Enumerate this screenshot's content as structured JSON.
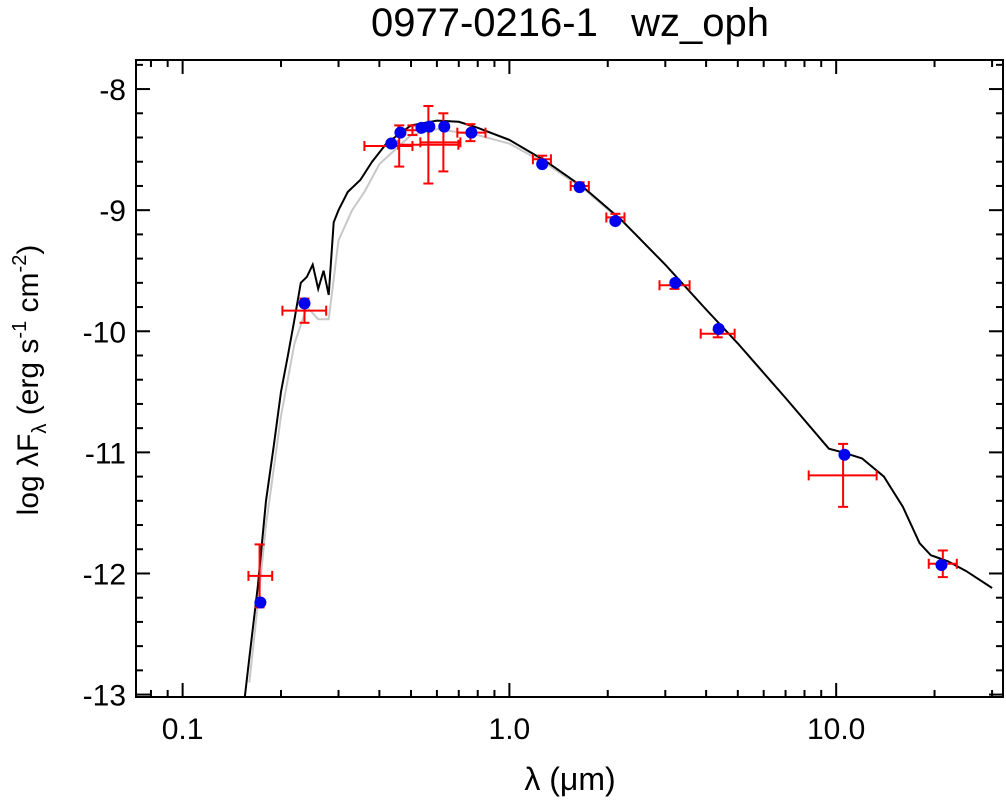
{
  "chart_data": {
    "type": "scatter",
    "title": "0977-0216-1   wz_oph",
    "xlabel": "λ (μm)",
    "ylabel": {
      "main": "log λF",
      "sub": "λ",
      "unit1": " (erg s",
      "exp1": "-1",
      "unit2": " cm",
      "exp2": "-2",
      "close": ")"
    },
    "xscale": "log",
    "xlim": [
      0.072,
      32.4
    ],
    "ylim": [
      -13.02,
      -7.76
    ],
    "xticks": [
      0.1,
      {
        "value": 1,
        "label": "1.0"
      },
      {
        "value": 10,
        "label": "10.0"
      }
    ],
    "xminorticks": [
      0.08,
      0.09,
      0.2,
      0.3,
      0.4,
      0.5,
      0.6,
      0.7,
      0.8,
      0.9,
      2,
      3,
      4,
      5,
      6,
      7,
      8,
      9,
      20,
      30
    ],
    "yticks": [
      -8,
      -9,
      -10,
      -11,
      -12,
      -13
    ],
    "yminorticks": [
      -7.8,
      -8.2,
      -8.4,
      -8.6,
      -8.8,
      -9.2,
      -9.4,
      -9.6,
      -9.8,
      -10.2,
      -10.4,
      -10.6,
      -10.8,
      -11.2,
      -11.4,
      -11.6,
      -11.8,
      -12.2,
      -12.4,
      -12.6,
      -12.8
    ],
    "series": [
      {
        "type": "line",
        "color": "#c8c8c8",
        "x": [
          0.16,
          0.17,
          0.18,
          0.2,
          0.22,
          0.24,
          0.26,
          0.28,
          0.3,
          0.33,
          0.36,
          0.4,
          0.5,
          0.6,
          0.8,
          1.0,
          1.3,
          1.7,
          2.2
        ],
        "values": [
          -12.9,
          -12.25,
          -11.6,
          -10.7,
          -10.1,
          -9.8,
          -9.9,
          -9.9,
          -9.25,
          -9.0,
          -8.85,
          -8.62,
          -8.38,
          -8.33,
          -8.38,
          -8.45,
          -8.62,
          -8.83,
          -9.09
        ]
      },
      {
        "type": "line",
        "color": "#000000",
        "x": [
          0.155,
          0.16,
          0.17,
          0.18,
          0.19,
          0.2,
          0.21,
          0.22,
          0.23,
          0.24,
          0.25,
          0.26,
          0.27,
          0.28,
          0.29,
          0.3,
          0.32,
          0.35,
          0.38,
          0.42,
          0.5,
          0.6,
          0.7,
          0.8,
          1.0,
          1.3,
          1.7,
          2.2,
          3.0,
          4.0,
          5.0,
          7.0,
          9.5,
          10.5,
          12,
          14,
          16,
          18,
          19.5,
          20,
          22,
          25,
          30
        ],
        "values": [
          -13.02,
          -12.7,
          -12.1,
          -11.4,
          -10.95,
          -10.5,
          -10.2,
          -9.9,
          -9.6,
          -9.55,
          -9.45,
          -9.65,
          -9.5,
          -9.7,
          -9.1,
          -9.0,
          -8.85,
          -8.75,
          -8.6,
          -8.45,
          -8.3,
          -8.26,
          -8.27,
          -8.32,
          -8.42,
          -8.6,
          -8.82,
          -9.08,
          -9.45,
          -9.82,
          -10.1,
          -10.55,
          -10.97,
          -11.0,
          -11.05,
          -11.2,
          -11.45,
          -11.75,
          -11.85,
          -11.86,
          -11.9,
          -11.98,
          -12.12
        ]
      },
      {
        "type": "errorbar",
        "color": "#ff0000",
        "x": [
          0.172,
          0.236,
          0.46,
          0.565,
          0.628,
          0.505,
          0.76,
          1.26,
          1.64,
          2.11,
          3.2,
          4.34,
          10.5,
          21.2
        ],
        "xmin": [
          0.159,
          0.202,
          0.36,
          0.457,
          0.534,
          0.457,
          0.693,
          1.18,
          1.54,
          1.98,
          2.88,
          3.85,
          8.24,
          19.2
        ],
        "xmax": [
          0.188,
          0.275,
          0.505,
          0.698,
          0.708,
          0.565,
          0.845,
          1.34,
          1.75,
          2.25,
          3.56,
          4.89,
          13.3,
          23.4
        ],
        "values": [
          -12.02,
          -9.83,
          -8.47,
          -8.46,
          -8.44,
          -8.34,
          -8.36,
          -8.58,
          -8.8,
          -9.06,
          -9.62,
          -10.02,
          -11.19,
          -11.92
        ],
        "yerr": [
          0.26,
          0.1,
          0.17,
          0.32,
          0.24,
          0.04,
          0.07,
          0.03,
          0.03,
          0.03,
          0.03,
          0.03,
          0.26,
          0.11
        ]
      },
      {
        "type": "points",
        "color": "#0000ee",
        "x": [
          0.173,
          0.236,
          0.435,
          0.464,
          0.538,
          0.569,
          0.632,
          0.765,
          1.26,
          1.64,
          2.11,
          3.22,
          4.37,
          10.6,
          21.0
        ],
        "values": [
          -12.24,
          -9.77,
          -8.45,
          -8.36,
          -8.32,
          -8.31,
          -8.31,
          -8.36,
          -8.62,
          -8.81,
          -9.09,
          -9.6,
          -9.98,
          -11.02,
          -11.93
        ]
      }
    ]
  }
}
